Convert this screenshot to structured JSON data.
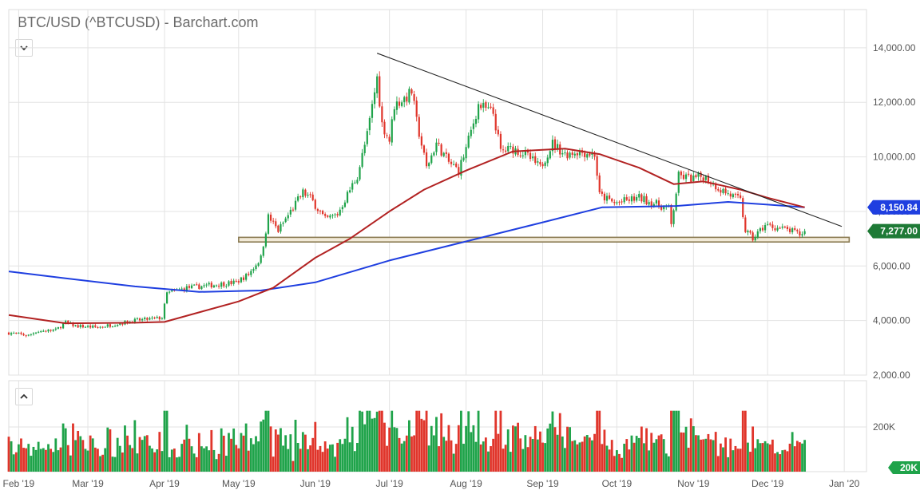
{
  "title": "BTC/USD (^BTCUSD) - Barchart.com",
  "icons": {
    "main_toggle": "chevron-down-icon",
    "volume_toggle": "chevron-up-icon"
  },
  "colors": {
    "up": "#1fa34a",
    "down": "#e0352b",
    "ma_red": "#b22222",
    "ma_blue": "#1f3fe0",
    "ma_red_label": "#1e7a36",
    "ma_blue_label": "#1f3fe0",
    "grid": "#e3e3e3",
    "support_fill": "#f2ead8",
    "support_stroke": "#8a7a52"
  },
  "chart_data": {
    "type": "candlestick",
    "price_axis": {
      "ticks": [
        2000,
        4000,
        6000,
        8000,
        10000,
        12000,
        14000
      ],
      "tick_labels": [
        "2,000.00",
        "4,000.00",
        "6,000.00",
        "8,000.00",
        "10,000.00",
        "12,000.00",
        "14,000.00"
      ],
      "ylim": [
        2000,
        15400
      ]
    },
    "volume_axis": {
      "tick_labels": [
        "200K",
        "20K"
      ]
    },
    "x_axis": {
      "labels": [
        "Feb '19",
        "Mar '19",
        "Apr '19",
        "May '19",
        "Jun '19",
        "Jul '19",
        "Aug '19",
        "Sep '19",
        "Oct '19",
        "Nov '19",
        "Dec '19",
        "Jan '20"
      ]
    },
    "price_keypoints": [
      [
        "2019-01-28",
        3550
      ],
      [
        "2019-02-05",
        3450
      ],
      [
        "2019-02-08",
        3600
      ],
      [
        "2019-02-16",
        3650
      ],
      [
        "2019-02-20",
        3930
      ],
      [
        "2019-02-24",
        3800
      ],
      [
        "2019-03-05",
        3750
      ],
      [
        "2019-03-20",
        4000
      ],
      [
        "2019-03-31",
        4100
      ],
      [
        "2019-04-02",
        5000
      ],
      [
        "2019-04-10",
        5200
      ],
      [
        "2019-04-20",
        5300
      ],
      [
        "2019-04-30",
        5400
      ],
      [
        "2019-05-05",
        5700
      ],
      [
        "2019-05-10",
        6300
      ],
      [
        "2019-05-13",
        7800
      ],
      [
        "2019-05-17",
        7300
      ],
      [
        "2019-05-27",
        8700
      ],
      [
        "2019-05-30",
        8500
      ],
      [
        "2019-06-05",
        7700
      ],
      [
        "2019-06-10",
        7900
      ],
      [
        "2019-06-15",
        8800
      ],
      [
        "2019-06-18",
        9300
      ],
      [
        "2019-06-22",
        10800
      ],
      [
        "2019-06-26",
        12900
      ],
      [
        "2019-06-28",
        11200
      ],
      [
        "2019-07-01",
        10600
      ],
      [
        "2019-07-03",
        11900
      ],
      [
        "2019-07-08",
        12200
      ],
      [
        "2019-07-10",
        12400
      ],
      [
        "2019-07-12",
        11300
      ],
      [
        "2019-07-16",
        9600
      ],
      [
        "2019-07-20",
        10500
      ],
      [
        "2019-07-25",
        9800
      ],
      [
        "2019-07-29",
        9500
      ],
      [
        "2019-08-01",
        10300
      ],
      [
        "2019-08-06",
        11900
      ],
      [
        "2019-08-12",
        11600
      ],
      [
        "2019-08-15",
        10200
      ],
      [
        "2019-08-20",
        10300
      ],
      [
        "2019-08-25",
        10100
      ],
      [
        "2019-08-31",
        9600
      ],
      [
        "2019-09-05",
        10500
      ],
      [
        "2019-09-10",
        10100
      ],
      [
        "2019-09-15",
        10200
      ],
      [
        "2019-09-22",
        10100
      ],
      [
        "2019-09-24",
        8600
      ],
      [
        "2019-09-30",
        8300
      ],
      [
        "2019-10-10",
        8500
      ],
      [
        "2019-10-22",
        8100
      ],
      [
        "2019-10-23",
        7500
      ],
      [
        "2019-10-25",
        8700
      ],
      [
        "2019-10-26",
        9300
      ],
      [
        "2019-11-01",
        9200
      ],
      [
        "2019-11-05",
        9300
      ],
      [
        "2019-11-12",
        8800
      ],
      [
        "2019-11-20",
        8400
      ],
      [
        "2019-11-22",
        7300
      ],
      [
        "2019-11-25",
        7000
      ],
      [
        "2019-11-30",
        7500
      ],
      [
        "2019-12-05",
        7400
      ],
      [
        "2019-12-10",
        7300
      ],
      [
        "2019-12-14",
        7150
      ],
      [
        "2019-12-16",
        7277
      ]
    ],
    "moving_averages": [
      {
        "name": "red",
        "last": 8150.84,
        "points": [
          [
            "2019-01-28",
            4200
          ],
          [
            "2019-02-20",
            3900
          ],
          [
            "2019-03-20",
            3920
          ],
          [
            "2019-04-01",
            3950
          ],
          [
            "2019-04-15",
            4300
          ],
          [
            "2019-05-01",
            4700
          ],
          [
            "2019-05-15",
            5200
          ],
          [
            "2019-06-01",
            6300
          ],
          [
            "2019-06-15",
            7000
          ],
          [
            "2019-07-01",
            8000
          ],
          [
            "2019-07-15",
            8800
          ],
          [
            "2019-08-01",
            9500
          ],
          [
            "2019-08-20",
            10200
          ],
          [
            "2019-09-10",
            10300
          ],
          [
            "2019-09-24",
            10100
          ],
          [
            "2019-10-10",
            9600
          ],
          [
            "2019-10-24",
            9000
          ],
          [
            "2019-11-05",
            9100
          ],
          [
            "2019-11-20",
            8800
          ],
          [
            "2019-12-01",
            8500
          ],
          [
            "2019-12-16",
            8150
          ]
        ]
      },
      {
        "name": "blue",
        "points": [
          [
            "2019-01-28",
            5800
          ],
          [
            "2019-02-20",
            5550
          ],
          [
            "2019-03-20",
            5250
          ],
          [
            "2019-04-15",
            5050
          ],
          [
            "2019-05-10",
            5100
          ],
          [
            "2019-06-01",
            5400
          ],
          [
            "2019-07-01",
            6200
          ],
          [
            "2019-08-01",
            6900
          ],
          [
            "2019-09-01",
            7600
          ],
          [
            "2019-09-25",
            8150
          ],
          [
            "2019-10-25",
            8200
          ],
          [
            "2019-11-15",
            8350
          ],
          [
            "2019-12-01",
            8250
          ],
          [
            "2019-12-16",
            8150
          ]
        ]
      }
    ],
    "trendline": {
      "from": [
        "2019-06-26",
        13800
      ],
      "to": [
        "2019-12-31",
        7450
      ]
    },
    "support_zone": {
      "from": "2019-05-01",
      "to": "2020-01-03",
      "low": 6880,
      "high": 7050
    },
    "last_price": 7277.0,
    "last_price_label": "7,277.00",
    "ma_label": "8,150.84"
  }
}
